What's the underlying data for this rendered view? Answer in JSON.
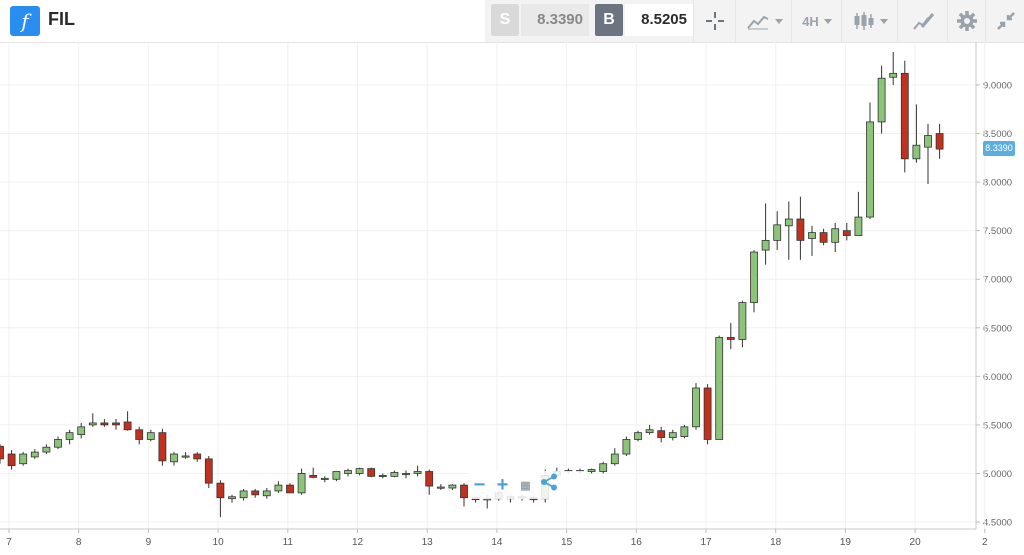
{
  "header": {
    "logo_glyph": "f",
    "symbol": "FIL",
    "sell": {
      "label": "S",
      "price": "8.3390"
    },
    "buy": {
      "label": "B",
      "price": "8.5205"
    },
    "interval": "4H",
    "icons": [
      "crosshair-icon",
      "line-chart-icon",
      "candlestick-icon",
      "draw-icon",
      "gear-icon",
      "collapse-icon"
    ]
  },
  "colors": {
    "up": "#8cc47a",
    "down": "#c0321e",
    "accent": "#2a8df0",
    "last_price_bg": "#5aaee0"
  },
  "chart_data": {
    "type": "candlestick",
    "last_price": "8.3390",
    "y_ticks": [
      "9.0000",
      "8.5000",
      "8.0000",
      "7.5000",
      "7.0000",
      "6.5000",
      "6.0000",
      "5.5000",
      "5.0000",
      "4.5000"
    ],
    "ylim": [
      4.45,
      9.35
    ],
    "x_ticks": [
      "7",
      "8",
      "9",
      "10",
      "11",
      "12",
      "13",
      "14",
      "15",
      "16",
      "17",
      "18",
      "19",
      "20",
      "2"
    ],
    "candles": [
      [
        5.28,
        5.3,
        5.1,
        5.15
      ],
      [
        5.2,
        5.24,
        5.04,
        5.08
      ],
      [
        5.1,
        5.22,
        5.08,
        5.2
      ],
      [
        5.17,
        5.25,
        5.15,
        5.22
      ],
      [
        5.22,
        5.3,
        5.2,
        5.27
      ],
      [
        5.27,
        5.38,
        5.25,
        5.35
      ],
      [
        5.35,
        5.45,
        5.3,
        5.42
      ],
      [
        5.4,
        5.52,
        5.36,
        5.48
      ],
      [
        5.5,
        5.62,
        5.48,
        5.52
      ],
      [
        5.52,
        5.56,
        5.48,
        5.5
      ],
      [
        5.52,
        5.56,
        5.45,
        5.5
      ],
      [
        5.53,
        5.64,
        5.44,
        5.45
      ],
      [
        5.45,
        5.48,
        5.3,
        5.35
      ],
      [
        5.35,
        5.45,
        5.33,
        5.42
      ],
      [
        5.42,
        5.46,
        5.08,
        5.13
      ],
      [
        5.12,
        5.22,
        5.08,
        5.2
      ],
      [
        5.18,
        5.22,
        5.15,
        5.18
      ],
      [
        5.2,
        5.22,
        5.12,
        5.15
      ],
      [
        5.15,
        5.18,
        4.85,
        4.9
      ],
      [
        4.9,
        4.93,
        4.55,
        4.75
      ],
      [
        4.74,
        4.78,
        4.7,
        4.76
      ],
      [
        4.75,
        4.84,
        4.72,
        4.82
      ],
      [
        4.82,
        4.84,
        4.75,
        4.78
      ],
      [
        4.77,
        4.85,
        4.74,
        4.82
      ],
      [
        4.82,
        4.92,
        4.8,
        4.88
      ],
      [
        4.88,
        4.9,
        4.8,
        4.8
      ],
      [
        4.8,
        5.05,
        4.78,
        5.0
      ],
      [
        4.98,
        5.06,
        4.95,
        4.96
      ],
      [
        4.94,
        4.97,
        4.91,
        4.95
      ],
      [
        4.94,
        5.02,
        4.92,
        5.02
      ],
      [
        5.0,
        5.05,
        4.97,
        5.03
      ],
      [
        5.0,
        5.06,
        4.98,
        5.05
      ],
      [
        5.05,
        5.06,
        4.96,
        4.97
      ],
      [
        4.97,
        5.0,
        4.95,
        4.98
      ],
      [
        4.97,
        5.03,
        4.96,
        5.01
      ],
      [
        5.0,
        5.03,
        4.95,
        5.0
      ],
      [
        5.0,
        5.08,
        4.97,
        5.02
      ],
      [
        5.02,
        5.04,
        4.78,
        4.87
      ],
      [
        4.86,
        4.89,
        4.83,
        4.86
      ],
      [
        4.85,
        4.89,
        4.83,
        4.88
      ],
      [
        4.88,
        4.9,
        4.66,
        4.75
      ],
      [
        4.75,
        4.76,
        4.7,
        4.73
      ],
      [
        4.73,
        4.78,
        4.64,
        4.74
      ],
      [
        4.74,
        4.82,
        4.72,
        4.8
      ],
      [
        4.74,
        4.78,
        4.7,
        4.76
      ],
      [
        4.75,
        4.79,
        4.72,
        4.76
      ],
      [
        4.75,
        4.77,
        4.7,
        4.73
      ],
      [
        4.74,
        5.04,
        4.7,
        4.98
      ],
      [
        4.98,
        5.06,
        4.96,
        5.02
      ],
      [
        5.02,
        5.05,
        5.0,
        5.03
      ],
      [
        5.03,
        5.05,
        5.0,
        5.03
      ],
      [
        5.02,
        5.05,
        5.0,
        5.04
      ],
      [
        5.02,
        5.12,
        5.0,
        5.1
      ],
      [
        5.1,
        5.26,
        5.08,
        5.2
      ],
      [
        5.2,
        5.38,
        5.18,
        5.35
      ],
      [
        5.35,
        5.44,
        5.33,
        5.42
      ],
      [
        5.42,
        5.5,
        5.4,
        5.45
      ],
      [
        5.44,
        5.48,
        5.32,
        5.37
      ],
      [
        5.37,
        5.45,
        5.34,
        5.42
      ],
      [
        5.38,
        5.5,
        5.36,
        5.48
      ],
      [
        5.48,
        5.93,
        5.45,
        5.88
      ],
      [
        5.88,
        5.92,
        5.3,
        5.35
      ],
      [
        5.35,
        6.42,
        5.35,
        6.4
      ],
      [
        6.4,
        6.55,
        6.28,
        6.38
      ],
      [
        6.38,
        6.78,
        6.3,
        6.76
      ],
      [
        6.76,
        7.3,
        6.66,
        7.28
      ],
      [
        7.3,
        7.78,
        7.15,
        7.4
      ],
      [
        7.4,
        7.7,
        7.3,
        7.56
      ],
      [
        7.55,
        7.8,
        7.2,
        7.62
      ],
      [
        7.62,
        7.85,
        7.2,
        7.4
      ],
      [
        7.42,
        7.55,
        7.24,
        7.48
      ],
      [
        7.48,
        7.52,
        7.35,
        7.38
      ],
      [
        7.38,
        7.58,
        7.28,
        7.52
      ],
      [
        7.5,
        7.58,
        7.4,
        7.45
      ],
      [
        7.45,
        7.9,
        7.45,
        7.64
      ],
      [
        7.64,
        8.82,
        7.62,
        8.62
      ],
      [
        8.62,
        9.2,
        8.5,
        9.07
      ],
      [
        9.08,
        9.34,
        9.0,
        9.12
      ],
      [
        9.12,
        9.25,
        8.1,
        8.24
      ],
      [
        8.24,
        8.8,
        8.2,
        8.38
      ],
      [
        8.36,
        8.6,
        7.98,
        8.48
      ],
      [
        8.5,
        8.6,
        8.24,
        8.34
      ]
    ]
  },
  "zoom": {
    "minus": "−",
    "plus": "+"
  }
}
